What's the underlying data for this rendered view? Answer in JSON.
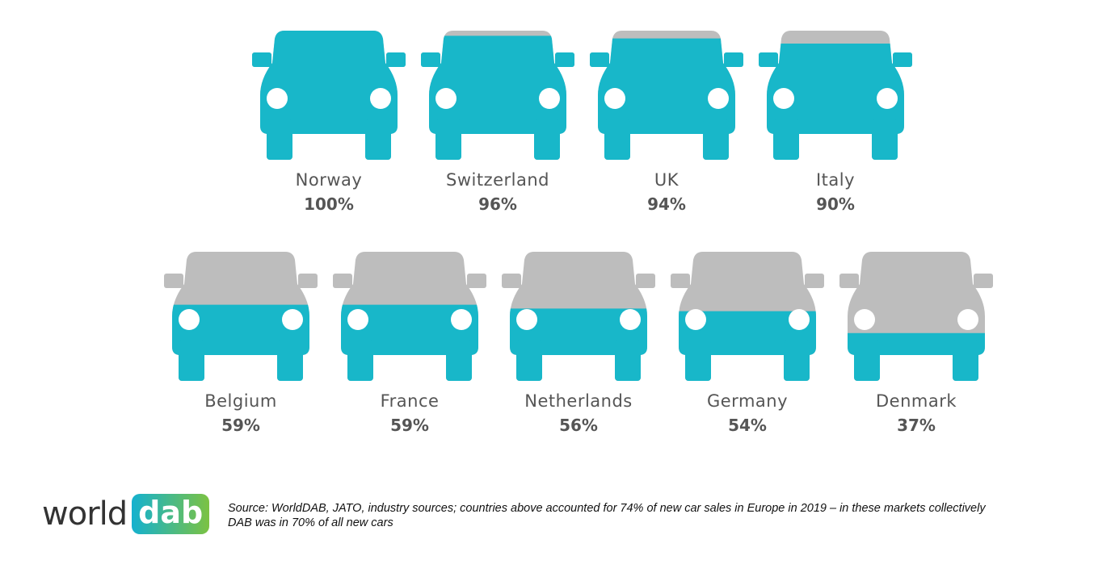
{
  "colors": {
    "filled": "#18b7c9",
    "empty": "#bdbdbd",
    "headlight": "#ffffff"
  },
  "chart_data": {
    "type": "bar",
    "title": "",
    "categories": [
      "Norway",
      "Switzerland",
      "UK",
      "Italy",
      "Belgium",
      "France",
      "Netherlands",
      "Germany",
      "Denmark"
    ],
    "values": [
      100,
      96,
      94,
      90,
      59,
      59,
      56,
      54,
      37
    ],
    "labels": [
      "100%",
      "96%",
      "94%",
      "90%",
      "59%",
      "59%",
      "56%",
      "54%",
      "37%"
    ],
    "ylim": [
      0,
      100
    ]
  },
  "footer": {
    "logo_word": "world",
    "logo_badge": "dab",
    "source_line1": "Source: WorldDAB, JATO, industry sources; countries above accounted for 74% of new car sales in Europe in 2019 – in these markets collectively",
    "source_line2": "DAB was in 70% of all new cars"
  }
}
